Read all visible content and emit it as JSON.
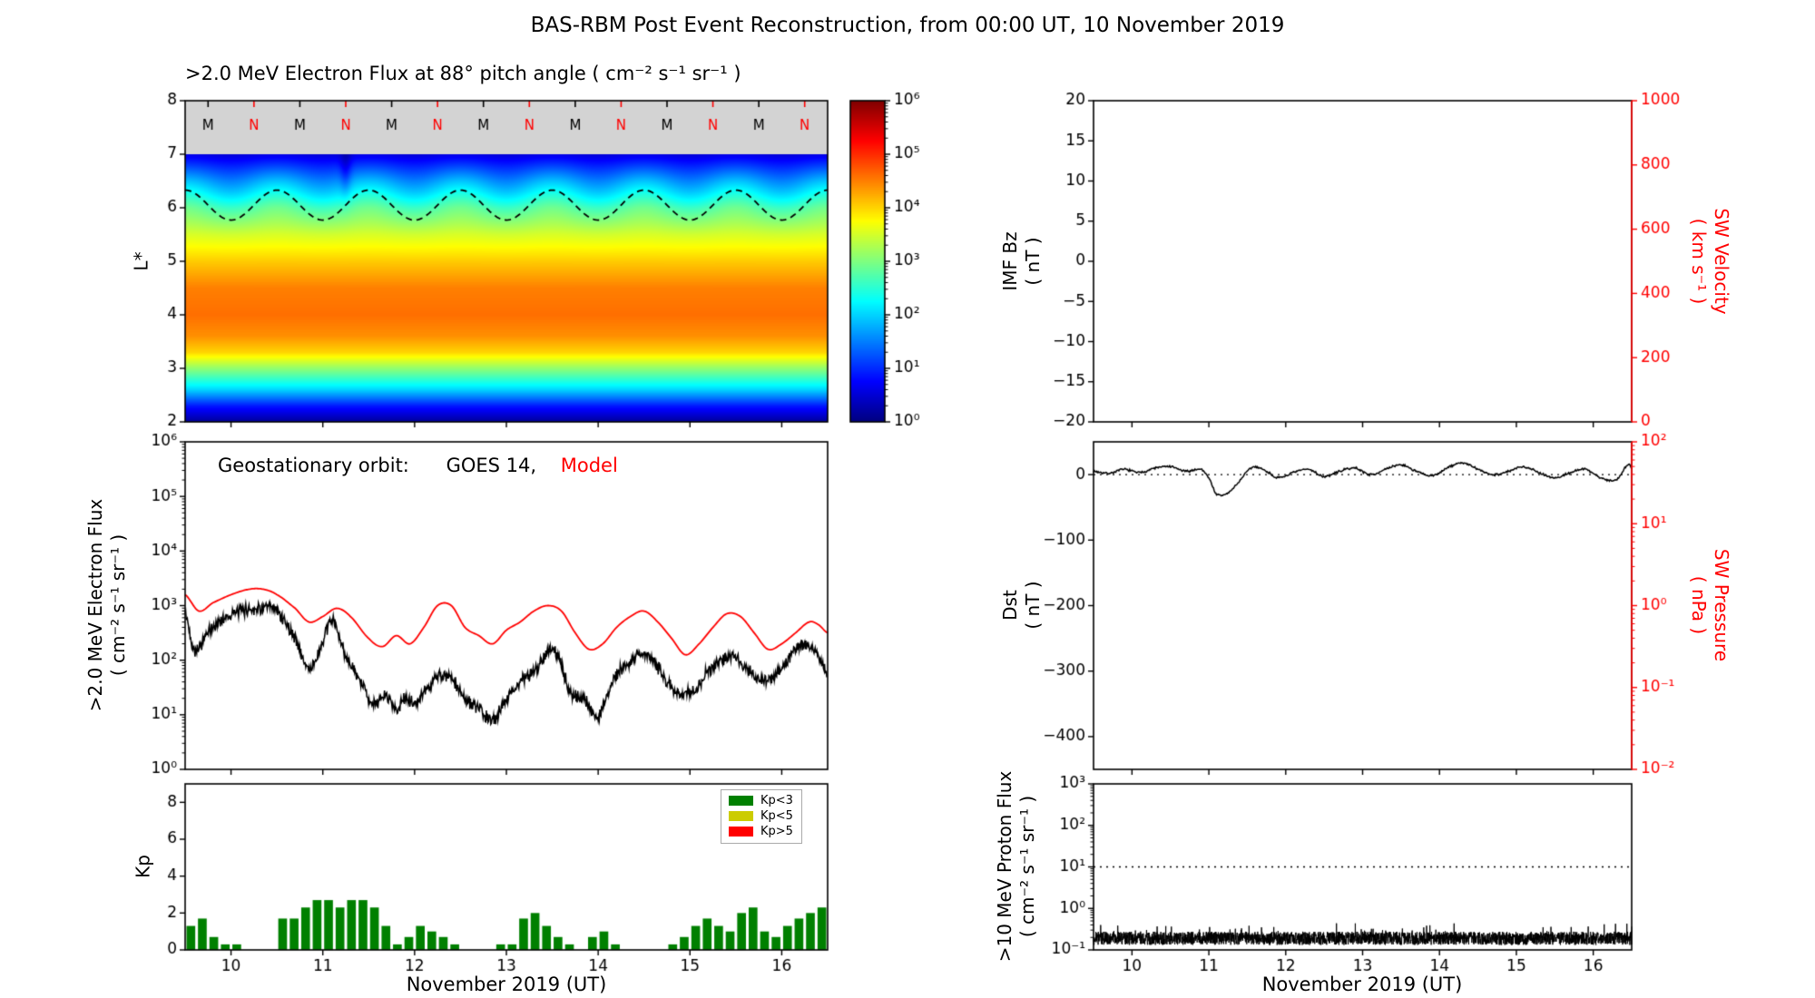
{
  "figure_title": "BAS-RBM Post Event Reconstruction, from 00:00 UT, 10 November 2019",
  "colors": {
    "model": "#ff0000",
    "observation": "#000000",
    "right_axis": "#ff0000",
    "nodata_gray": "#d3d3d3",
    "kp_low": "#008000",
    "kp_mid": "#cccc00",
    "kp_high": "#ff0000"
  },
  "chart_data": [
    {
      "id": "electron-flux-spectrogram",
      "type": "heatmap",
      "title": ">2.0 MeV Electron Flux at 88° pitch angle ( cm⁻² s⁻¹ sr⁻¹ )",
      "ylabel": "L*",
      "xlim": [
        9.5,
        16.5
      ],
      "xticks": [
        10,
        11,
        12,
        13,
        14,
        15,
        16
      ],
      "ylim": [
        2,
        8
      ],
      "yticks": [
        2,
        3,
        4,
        5,
        6,
        7,
        8
      ],
      "color_scale": {
        "type": "log",
        "colormap": "jet",
        "log10_range": [
          0,
          6
        ],
        "tick_values": [
          0,
          1,
          2,
          3,
          4,
          5,
          6
        ],
        "tick_labels": [
          "10⁰",
          "10¹",
          "10²",
          "10³",
          "10⁴",
          "10⁵",
          "10⁶"
        ]
      },
      "nodata_band": {
        "from_L": 7,
        "to_L": 8
      },
      "flux_profile": {
        "L": [
          2.0,
          2.3,
          2.6,
          3.0,
          3.3,
          3.6,
          4.0,
          4.5,
          5.0,
          5.5,
          6.0,
          6.5,
          6.8,
          7.0
        ],
        "log10_flux": [
          0.15,
          0.9,
          2.0,
          3.1,
          4.0,
          4.4,
          4.6,
          4.5,
          4.05,
          3.5,
          2.75,
          1.7,
          1.0,
          0.55
        ]
      },
      "diurnal_modulation": {
        "amplitude_log10": 0.22,
        "center_L": 6.3,
        "sigma_L": 0.55,
        "period_days": 1.0,
        "phase_days": 0.25
      },
      "transient_dropout": {
        "time": 11.25,
        "t_sigma": 0.06,
        "center_L": 6.7,
        "L_sigma": 0.5,
        "depth_log10": 0.45
      },
      "geo_orbit_line": {
        "style": "dashed",
        "color": "#000000",
        "mean_L": 6.05,
        "amplitude_L": 0.28,
        "period_days": 1.0,
        "phase_days": 0.25
      },
      "satellite_markers": {
        "M": {
          "label": "M",
          "color": "#000000",
          "times": [
            9.75,
            10.75,
            11.75,
            12.75,
            13.75,
            14.75,
            15.75
          ]
        },
        "N": {
          "label": "N",
          "color": "#ff0000",
          "times": [
            10.25,
            11.25,
            12.25,
            13.25,
            14.25,
            15.25,
            16.25
          ]
        }
      }
    },
    {
      "id": "geostationary-electron-flux",
      "type": "line",
      "annotation": {
        "prefix": "Geostationary orbit:",
        "observed": "GOES 14,",
        "model": "Model"
      },
      "ylabel_line1": ">2.0 MeV Electron Flux",
      "ylabel_line2": "( cm⁻² s⁻¹ sr⁻¹ )",
      "xlim": [
        9.5,
        16.5
      ],
      "xticks": [
        10,
        11,
        12,
        13,
        14,
        15,
        16
      ],
      "ylog_range": [
        0,
        6
      ],
      "ytick_values": [
        0,
        1,
        2,
        3,
        4,
        5,
        6
      ],
      "ytick_labels": [
        "10⁰",
        "10¹",
        "10²",
        "10³",
        "10⁴",
        "10⁵",
        "10⁶"
      ],
      "series": [
        {
          "name": "GOES 14",
          "color": "#000000",
          "noise_log10": 0.07,
          "x": [
            9.5,
            9.6,
            9.75,
            9.9,
            10.1,
            10.3,
            10.5,
            10.7,
            10.85,
            11.0,
            11.1,
            11.2,
            11.3,
            11.45,
            11.55,
            11.7,
            11.8,
            11.9,
            12.0,
            12.1,
            12.25,
            12.4,
            12.55,
            12.7,
            12.85,
            13.0,
            13.15,
            13.3,
            13.45,
            13.55,
            13.7,
            13.85,
            14.0,
            14.15,
            14.3,
            14.45,
            14.6,
            14.75,
            14.9,
            15.05,
            15.2,
            15.35,
            15.5,
            15.65,
            15.8,
            15.95,
            16.1,
            16.25,
            16.35,
            16.5
          ],
          "log10y": [
            2.85,
            2.2,
            2.5,
            2.75,
            2.9,
            2.95,
            2.9,
            2.4,
            1.85,
            2.3,
            2.75,
            2.3,
            1.9,
            1.5,
            1.2,
            1.35,
            1.1,
            1.3,
            1.2,
            1.4,
            1.7,
            1.65,
            1.3,
            1.1,
            0.9,
            1.3,
            1.6,
            1.8,
            2.15,
            2.1,
            1.4,
            1.3,
            0.95,
            1.6,
            1.9,
            2.1,
            2.0,
            1.6,
            1.4,
            1.45,
            1.8,
            2.0,
            2.05,
            1.8,
            1.6,
            1.75,
            2.1,
            2.3,
            2.2,
            1.75
          ]
        },
        {
          "name": "Model",
          "color": "#ff0000",
          "noise_log10": 0,
          "x": [
            9.5,
            9.65,
            9.8,
            10.0,
            10.2,
            10.35,
            10.5,
            10.7,
            10.85,
            11.0,
            11.15,
            11.3,
            11.5,
            11.65,
            11.8,
            11.95,
            12.1,
            12.25,
            12.4,
            12.55,
            12.7,
            12.85,
            13.0,
            13.15,
            13.3,
            13.45,
            13.6,
            13.75,
            13.9,
            14.05,
            14.2,
            14.35,
            14.5,
            14.65,
            14.8,
            14.95,
            15.1,
            15.25,
            15.4,
            15.55,
            15.7,
            15.85,
            16.0,
            16.15,
            16.3,
            16.4,
            16.5
          ],
          "log10y": [
            3.2,
            2.9,
            3.05,
            3.2,
            3.3,
            3.3,
            3.2,
            2.95,
            2.7,
            2.8,
            2.95,
            2.8,
            2.4,
            2.25,
            2.45,
            2.3,
            2.6,
            3.0,
            3.0,
            2.6,
            2.45,
            2.3,
            2.55,
            2.7,
            2.9,
            3.0,
            2.9,
            2.5,
            2.2,
            2.3,
            2.6,
            2.8,
            2.9,
            2.7,
            2.4,
            2.1,
            2.3,
            2.6,
            2.85,
            2.8,
            2.5,
            2.2,
            2.3,
            2.5,
            2.7,
            2.65,
            2.5
          ]
        }
      ]
    },
    {
      "id": "kp-index",
      "type": "bar",
      "ylabel": "Kp",
      "xlabel": "November 2019 (UT)",
      "xlim": [
        9.5,
        16.5
      ],
      "xticks": [
        10,
        11,
        12,
        13,
        14,
        15,
        16
      ],
      "ylim": [
        0,
        9
      ],
      "yticks": [
        0,
        2,
        4,
        6,
        8
      ],
      "t_start": 9.5,
      "bar_width_days": 0.125,
      "values": [
        1.3,
        1.7,
        0.7,
        0.3,
        0.3,
        0,
        0,
        0,
        1.7,
        1.7,
        2.3,
        2.7,
        2.7,
        2.3,
        2.7,
        2.7,
        2.3,
        1.3,
        0.3,
        0.7,
        1.3,
        1.0,
        0.7,
        0.3,
        0,
        0,
        0,
        0.3,
        0.3,
        1.7,
        2.0,
        1.3,
        0.7,
        0.3,
        0,
        0.7,
        1.0,
        0.3,
        0,
        0,
        0,
        0,
        0.3,
        0.7,
        1.3,
        1.7,
        1.3,
        1.0,
        2.0,
        2.3,
        1.0,
        0.7,
        1.3,
        1.7,
        2.0,
        2.3
      ],
      "legend": [
        {
          "label": "Kp<3",
          "color": "#008000"
        },
        {
          "label": "Kp<5",
          "color": "#cccc00"
        },
        {
          "label": "Kp>5",
          "color": "#ff0000"
        }
      ]
    },
    {
      "id": "imf-bz",
      "type": "line",
      "ylabel_line1": "IMF Bz",
      "ylabel_line2": "( nT )",
      "xlim": [
        9.5,
        16.5
      ],
      "xticks": [
        10,
        11,
        12,
        13,
        14,
        15,
        16
      ],
      "ylim": [
        -20,
        20
      ],
      "yticks": [
        -20,
        -15,
        -10,
        -5,
        0,
        5,
        10,
        15,
        20
      ],
      "ytick_labels": [
        "−20",
        "−15",
        "−10",
        "−5",
        "0",
        "5",
        "10",
        "15",
        "20"
      ],
      "right_axis": {
        "label_line1": "SW Velocity",
        "label_line2": "( km s⁻¹ )",
        "color": "#ff0000",
        "ylim": [
          0,
          1000
        ],
        "yticks": [
          0,
          200,
          400,
          600,
          800,
          1000
        ],
        "ytick_labels": [
          "0",
          "200",
          "400",
          "600",
          "800",
          "1000"
        ]
      },
      "series": []
    },
    {
      "id": "dst",
      "type": "line",
      "ylabel_line1": "Dst",
      "ylabel_line2": "( nT )",
      "xlim": [
        9.5,
        16.5
      ],
      "xticks": [
        10,
        11,
        12,
        13,
        14,
        15,
        16
      ],
      "ylim": [
        -450,
        50
      ],
      "yticks": [
        0,
        -100,
        -200,
        -300,
        -400
      ],
      "ytick_labels": [
        "0",
        "−100",
        "−200",
        "−300",
        "−400"
      ],
      "reference_line": {
        "y": 0,
        "style": "dotted"
      },
      "right_axis": {
        "label_line1": "SW Pressure",
        "label_line2": "( nPa )",
        "color": "#ff0000",
        "scale": "log",
        "ylog_range": [
          -2,
          2
        ],
        "tick_values": [
          -2,
          -1,
          0,
          1,
          2
        ],
        "tick_labels": [
          "10⁻²",
          "10⁻¹",
          "10⁰",
          "10¹",
          "10²"
        ]
      },
      "series": [
        {
          "name": "Dst",
          "color": "#000000",
          "noise_nT": 2,
          "x": [
            9.5,
            9.7,
            9.9,
            10.1,
            10.3,
            10.5,
            10.7,
            10.9,
            11.0,
            11.1,
            11.25,
            11.4,
            11.5,
            11.6,
            11.75,
            11.9,
            12.1,
            12.3,
            12.5,
            12.7,
            12.9,
            13.1,
            13.3,
            13.5,
            13.7,
            13.9,
            14.1,
            14.3,
            14.5,
            14.7,
            14.9,
            15.1,
            15.3,
            15.5,
            15.7,
            15.9,
            16.1,
            16.3,
            16.45,
            16.5
          ],
          "y": [
            5,
            2,
            8,
            3,
            10,
            12,
            5,
            8,
            -5,
            -30,
            -28,
            -10,
            5,
            12,
            5,
            -5,
            3,
            8,
            -3,
            5,
            10,
            0,
            8,
            15,
            5,
            -2,
            10,
            18,
            8,
            0,
            5,
            12,
            3,
            -5,
            3,
            8,
            -5,
            -8,
            15,
            10
          ]
        }
      ]
    },
    {
      "id": "proton-flux",
      "type": "line",
      "ylabel_line1": ">10 MeV Proton Flux",
      "ylabel_line2": "( cm⁻² s⁻¹ sr⁻¹ )",
      "xlabel": "November 2019 (UT)",
      "xlim": [
        9.5,
        16.5
      ],
      "xticks": [
        10,
        11,
        12,
        13,
        14,
        15,
        16
      ],
      "ylog_range": [
        -1,
        3
      ],
      "ytick_values": [
        -1,
        0,
        1,
        2,
        3
      ],
      "ytick_labels": [
        "10⁻¹",
        "10⁰",
        "10¹",
        "10²",
        "10³"
      ],
      "reference_line": {
        "log10y": 1,
        "style": "dotted"
      },
      "series": [
        {
          "name": ">10 MeV protons",
          "color": "#000000",
          "baseline_log10": -0.72,
          "noise_halfwidth_log10": 0.16,
          "spike_prob": 0.03,
          "spike_log10": 0.25
        }
      ]
    }
  ]
}
